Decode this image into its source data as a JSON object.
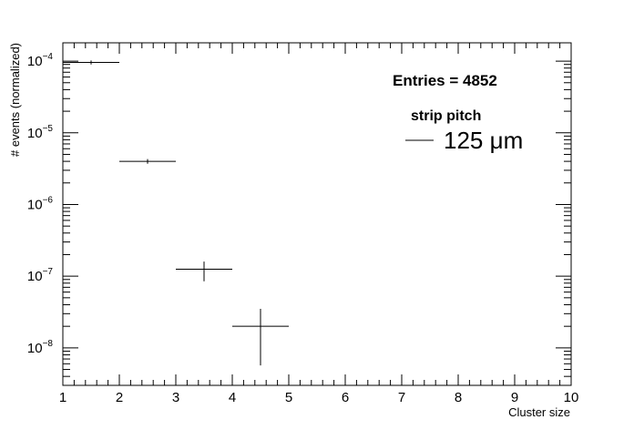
{
  "chart_data": {
    "type": "scatter",
    "xlabel": "Cluster size",
    "ylabel": "# events (normalized)",
    "xlim": [
      1,
      10
    ],
    "ylim": [
      3e-09,
      0.00018
    ],
    "yscale": "log",
    "x_ticks": [
      "1",
      "2",
      "3",
      "4",
      "5",
      "6",
      "7",
      "8",
      "9",
      "10"
    ],
    "y_ticks": [
      {
        "base": "10",
        "exp": "−4",
        "value": 0.0001
      },
      {
        "base": "10",
        "exp": "−5",
        "value": 1e-05
      },
      {
        "base": "10",
        "exp": "−6",
        "value": 1e-06
      },
      {
        "base": "10",
        "exp": "−7",
        "value": 1e-07
      },
      {
        "base": "10",
        "exp": "−8",
        "value": 1e-08
      }
    ],
    "stats_text": "Entries = 4852",
    "legend": {
      "header": "strip pitch",
      "entry": "125 μm",
      "placement": "top-right"
    },
    "series": [
      {
        "points": [
          {
            "x": 1.5,
            "xerr": 0.5,
            "y": 9.6e-05,
            "yerr_low": 9e-05,
            "yerr_high": 0.000102
          },
          {
            "x": 2.5,
            "xerr": 0.5,
            "y": 4e-06,
            "yerr_low": 3.7e-06,
            "yerr_high": 4.3e-06
          },
          {
            "x": 3.5,
            "xerr": 0.5,
            "y": 1.25e-07,
            "yerr_low": 8.5e-08,
            "yerr_high": 1.6e-07
          },
          {
            "x": 4.5,
            "xerr": 0.5,
            "y": 2e-08,
            "yerr_low": 5.7e-09,
            "yerr_high": 3.5e-08
          }
        ]
      }
    ],
    "line_color": "#000000"
  }
}
